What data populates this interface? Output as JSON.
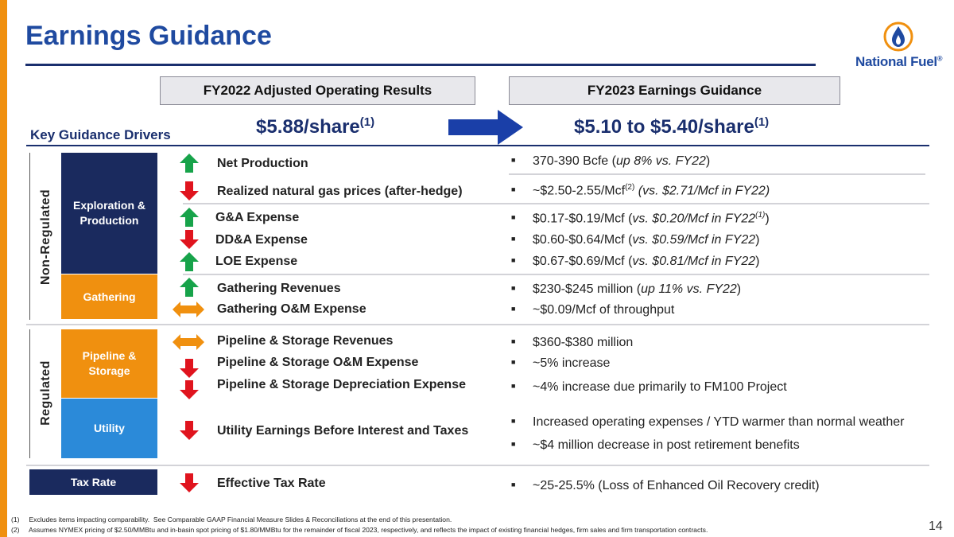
{
  "header": {
    "title": "Earnings Guidance",
    "logo_text": "National Fuel",
    "logo_reg": "®"
  },
  "columns": {
    "left_header": "FY2022 Adjusted Operating Results",
    "right_header": "FY2023 Earnings Guidance",
    "left_value": "$5.88/share",
    "left_sup": "(1)",
    "right_value": "$5.10 to $5.40/share",
    "right_sup": "(1)"
  },
  "section_title": "Key Guidance Drivers",
  "vertical_labels": {
    "non_regulated": "Non-Regulated",
    "regulated": "Regulated"
  },
  "segments": {
    "ep": "Exploration & Production",
    "gathering": "Gathering",
    "pipeline": "Pipeline & Storage",
    "utility": "Utility",
    "tax": "Tax Rate"
  },
  "drivers": [
    {
      "label": "Net Production",
      "direction": "up"
    },
    {
      "label": "Realized natural gas prices (after-hedge)",
      "direction": "down"
    },
    {
      "label": "G&A Expense",
      "direction": "up"
    },
    {
      "label": "DD&A Expense",
      "direction": "down"
    },
    {
      "label": "LOE Expense",
      "direction": "up"
    },
    {
      "label": "Gathering Revenues",
      "direction": "up"
    },
    {
      "label": "Gathering O&M Expense",
      "direction": "flat"
    },
    {
      "label": "Pipeline & Storage Revenues",
      "direction": "flat"
    },
    {
      "label": "Pipeline & Storage O&M Expense",
      "direction": "down"
    },
    {
      "label": "Pipeline & Storage Depreciation Expense",
      "direction": "down"
    },
    {
      "label": "Utility Earnings Before Interest and Taxes",
      "direction": "down"
    },
    {
      "label": "Effective Tax Rate",
      "direction": "down"
    }
  ],
  "guidance": {
    "b0_pre": "370-390 Bcfe (",
    "b0_it": "up 8% vs. FY22",
    "b0_post": ")",
    "b1_pre": "~$2.50-2.55/Mcf",
    "b1_sup": "(2)",
    "b1_it": " (vs. $2.71/Mcf in FY22)",
    "b2_pre": "$0.17-$0.19/Mcf (",
    "b2_it": "vs. $0.20/Mcf in FY22",
    "b2_sup": "(1)",
    "b2_post": ")",
    "b3_pre": "$0.60-$0.64/Mcf  (",
    "b3_it": "vs. $0.59/Mcf in FY22",
    "b3_post": ")",
    "b4_pre": "$0.67-$0.69/Mcf  (",
    "b4_it": "vs. $0.81/Mcf in FY22",
    "b4_post": ")",
    "b5_pre": "$230-$245 million (",
    "b5_it": "up 11% vs. FY22",
    "b5_post": ")",
    "b6": "~$0.09/Mcf of throughput",
    "b7": "$360-$380 million",
    "b8": "~5% increase",
    "b9": "~4% increase due primarily to FM100 Project",
    "b10": "Increased operating expenses / YTD warmer than normal weather",
    "b11": "~$4 million decrease in post retirement benefits",
    "b12": "~25-25.5% (Loss of Enhanced Oil Recovery credit)"
  },
  "footnotes": [
    "(1)     Excludes items impacting comparability.  See Comparable GAAP Financial Measure Slides & Reconciliations at the end of this presentation.",
    "(2)     Assumes NYMEX pricing of $2.50/MMBtu and in-basin spot pricing of $1.80/MMBtu for the remainder of fiscal 2023, respectively, and reflects the impact of existing financial hedges, firm sales and firm transportation contracts."
  ],
  "page_number": "14",
  "colors": {
    "brand_blue": "#1f4aa0",
    "navy": "#1a2a5e",
    "orange": "#f0900f",
    "light_blue": "#2b8ad9",
    "up_green": "#17a34a",
    "down_red": "#e0141e"
  }
}
